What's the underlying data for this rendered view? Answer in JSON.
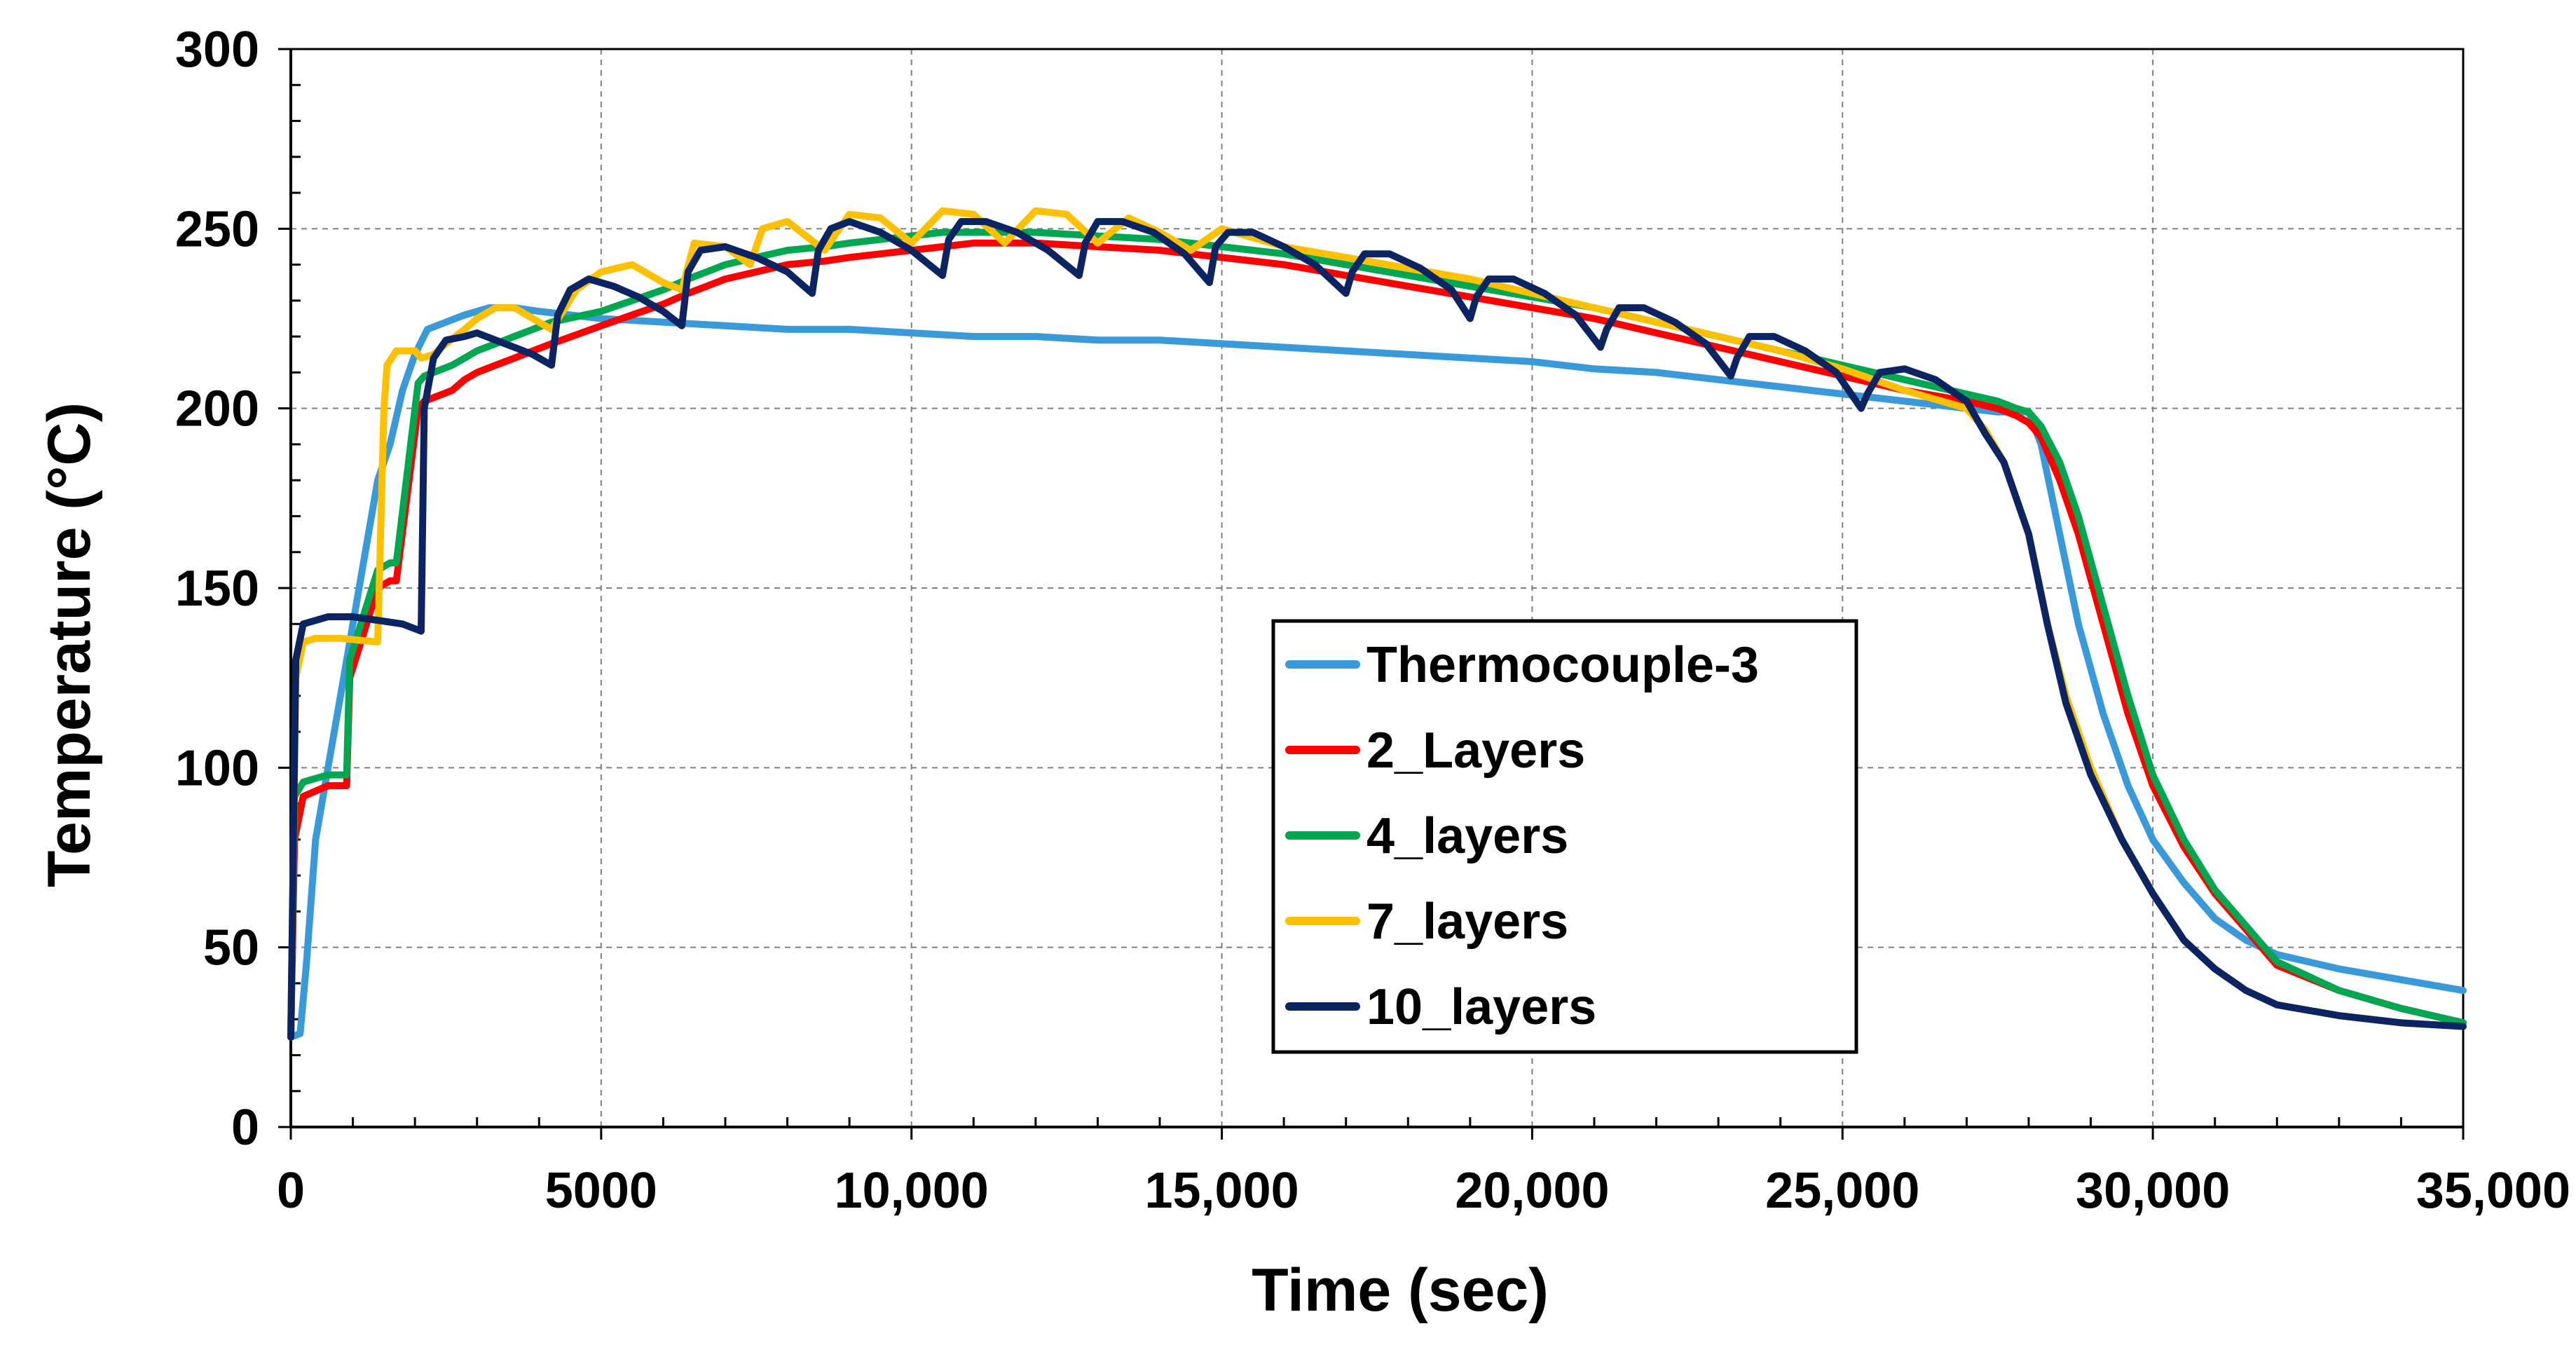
{
  "chart_data": {
    "type": "line",
    "title": "",
    "xlabel": "Time (sec)",
    "ylabel": "Temperature (°C)",
    "xlim": [
      0,
      35000
    ],
    "ylim": [
      0,
      300
    ],
    "x_ticks": [
      {
        "value": 0,
        "label": "0"
      },
      {
        "value": 5000,
        "label": "5000"
      },
      {
        "value": 10000,
        "label": "10,000"
      },
      {
        "value": 15000,
        "label": "15,000"
      },
      {
        "value": 20000,
        "label": "20,000"
      },
      {
        "value": 25000,
        "label": "25,000"
      },
      {
        "value": 30000,
        "label": "30,000"
      },
      {
        "value": 35000,
        "label": "35,000"
      }
    ],
    "y_ticks": [
      {
        "value": 0,
        "label": "0"
      },
      {
        "value": 50,
        "label": "50"
      },
      {
        "value": 100,
        "label": "100"
      },
      {
        "value": 150,
        "label": "150"
      },
      {
        "value": 200,
        "label": "200"
      },
      {
        "value": 250,
        "label": "250"
      },
      {
        "value": 300,
        "label": "300"
      }
    ],
    "grid": true,
    "legend_position": "center",
    "series": [
      {
        "name": "Thermocouple-3",
        "color": "#3a9ad9",
        "x": [
          0,
          150,
          250,
          400,
          600,
          800,
          1000,
          1200,
          1400,
          1600,
          1800,
          2000,
          2200,
          2500,
          2800,
          3200,
          3600,
          4000,
          4500,
          5000,
          6000,
          7000,
          8000,
          9000,
          10000,
          11000,
          12000,
          13000,
          14000,
          15000,
          16000,
          17000,
          18000,
          19000,
          20000,
          21000,
          22000,
          23000,
          24000,
          25000,
          26000,
          27000,
          27500,
          28000,
          28200,
          28500,
          28800,
          29200,
          29600,
          30000,
          30500,
          31000,
          31500,
          32000,
          33000,
          34000,
          35000
        ],
        "y": [
          25,
          26,
          45,
          80,
          100,
          120,
          140,
          160,
          180,
          190,
          205,
          215,
          222,
          224,
          226,
          228,
          228,
          227,
          226,
          225,
          224,
          223,
          222,
          222,
          221,
          220,
          220,
          219,
          219,
          218,
          217,
          216,
          215,
          214,
          213,
          211,
          210,
          208,
          206,
          204,
          202,
          200,
          199,
          199,
          190,
          165,
          140,
          115,
          95,
          80,
          68,
          58,
          52,
          48,
          44,
          41,
          38
        ]
      },
      {
        "name": "2_Layers",
        "color": "#ff0000",
        "x": [
          0,
          60,
          200,
          600,
          900,
          950,
          1400,
          1600,
          1700,
          2050,
          2150,
          2300,
          2600,
          2800,
          3000,
          3300,
          3600,
          3900,
          4200,
          5000,
          5500,
          6000,
          6400,
          6700,
          7000,
          7500,
          8000,
          8600,
          9000,
          10000,
          10500,
          11000,
          12000,
          13000,
          14000,
          15000,
          16000,
          17000,
          18000,
          19000,
          20000,
          21000,
          22000,
          23000,
          24000,
          25000,
          26000,
          27000,
          27500,
          27800,
          28000,
          28200,
          28500,
          28800,
          29200,
          29600,
          30000,
          30500,
          31000,
          31500,
          32000,
          33000,
          34000,
          35000
        ],
        "y": [
          25,
          80,
          92,
          95,
          95,
          125,
          150,
          152,
          152,
          200,
          202,
          203,
          205,
          208,
          210,
          212,
          214,
          216,
          218,
          223,
          226,
          229,
          232,
          234,
          236,
          238,
          240,
          241,
          242,
          244,
          245,
          246,
          246,
          245,
          244,
          242,
          240,
          237,
          234,
          231,
          228,
          225,
          221,
          217,
          213,
          209,
          205,
          202,
          200,
          198,
          196,
          192,
          180,
          165,
          140,
          115,
          95,
          78,
          65,
          55,
          45,
          38,
          33,
          29
        ]
      },
      {
        "name": "4_layers",
        "color": "#00a650",
        "x": [
          0,
          60,
          200,
          600,
          900,
          950,
          1400,
          1600,
          1700,
          2050,
          2150,
          2300,
          2600,
          2800,
          3000,
          3300,
          3600,
          3900,
          4200,
          5000,
          5500,
          6000,
          6400,
          6700,
          7000,
          7500,
          8000,
          8600,
          9000,
          10000,
          10500,
          11000,
          12000,
          13000,
          14000,
          15000,
          16000,
          17000,
          18000,
          19000,
          20000,
          21000,
          22000,
          23000,
          24000,
          25000,
          26000,
          27000,
          27500,
          27800,
          28000,
          28200,
          28500,
          28800,
          29200,
          29600,
          30000,
          30500,
          31000,
          31500,
          32000,
          33000,
          34000,
          35000
        ],
        "y": [
          25,
          92,
          96,
          98,
          98,
          130,
          155,
          157,
          157,
          207,
          209,
          210,
          212,
          214,
          216,
          218,
          220,
          222,
          224,
          227,
          230,
          233,
          236,
          238,
          240,
          242,
          244,
          245,
          246,
          248,
          249,
          249,
          249,
          248,
          247,
          245,
          243,
          240,
          237,
          234,
          231,
          228,
          224,
          220,
          216,
          212,
          208,
          204,
          202,
          200,
          199,
          195,
          185,
          170,
          145,
          120,
          98,
          80,
          66,
          56,
          46,
          38,
          33,
          29
        ]
      },
      {
        "name": "7_layers",
        "color": "#ffc000",
        "x": [
          0,
          80,
          200,
          400,
          800,
          1400,
          1500,
          1550,
          1700,
          2000,
          2100,
          2300,
          2500,
          2800,
          3000,
          3300,
          3600,
          3900,
          4200,
          4600,
          5000,
          5500,
          6000,
          6300,
          6500,
          7000,
          7400,
          7600,
          8000,
          8600,
          9000,
          9500,
          10000,
          10500,
          11000,
          11500,
          12000,
          12500,
          13000,
          13500,
          14000,
          14500,
          15000,
          16000,
          17000,
          18000,
          19000,
          20000,
          21000,
          22000,
          23000,
          24000,
          25000,
          26000,
          27000,
          27300,
          27600,
          28000,
          28300,
          28600,
          29000,
          29500,
          30000,
          30500,
          31000,
          31500,
          32000,
          33000,
          34000,
          35000
        ],
        "y": [
          25,
          125,
          135,
          136,
          136,
          135,
          200,
          212,
          216,
          216,
          214,
          215,
          218,
          222,
          225,
          228,
          228,
          225,
          222,
          233,
          238,
          240,
          235,
          233,
          246,
          245,
          240,
          250,
          252,
          244,
          254,
          253,
          246,
          255,
          254,
          246,
          255,
          254,
          246,
          253,
          249,
          244,
          250,
          245,
          242,
          239,
          236,
          232,
          228,
          224,
          220,
          216,
          211,
          205,
          200,
          194,
          185,
          165,
          140,
          120,
          100,
          80,
          65,
          52,
          44,
          38,
          34,
          31,
          29,
          28
        ]
      },
      {
        "name": "10_layers",
        "color": "#0c2461",
        "x": [
          0,
          80,
          200,
          600,
          1000,
          1400,
          1800,
          2100,
          2150,
          2300,
          2500,
          2800,
          3000,
          3300,
          3600,
          3900,
          4200,
          4300,
          4500,
          4800,
          5200,
          5600,
          6000,
          6300,
          6400,
          6600,
          7000,
          7500,
          8000,
          8400,
          8500,
          8700,
          9000,
          9500,
          10000,
          10500,
          10600,
          10800,
          11200,
          11700,
          12200,
          12700,
          12800,
          13000,
          13400,
          13900,
          14400,
          14800,
          14900,
          15100,
          15500,
          16000,
          16500,
          17000,
          17100,
          17300,
          17700,
          18200,
          18700,
          19000,
          19100,
          19300,
          19700,
          20200,
          20700,
          21100,
          21200,
          21400,
          21800,
          22300,
          22800,
          23200,
          23300,
          23500,
          23900,
          24400,
          24900,
          25300,
          25400,
          25600,
          26000,
          26500,
          27000,
          27300,
          27600,
          28000,
          28300,
          28600,
          29000,
          29500,
          30000,
          30500,
          31000,
          31500,
          32000,
          33000,
          34000,
          35000
        ],
        "y": [
          25,
          130,
          140,
          142,
          142,
          141,
          140,
          138,
          200,
          214,
          219,
          220,
          221,
          219,
          217,
          215,
          212,
          226,
          233,
          236,
          234,
          231,
          227,
          223,
          238,
          244,
          245,
          242,
          238,
          232,
          244,
          250,
          252,
          249,
          244,
          237,
          247,
          252,
          252,
          249,
          244,
          237,
          246,
          252,
          252,
          249,
          243,
          235,
          245,
          249,
          249,
          245,
          240,
          232,
          238,
          243,
          243,
          239,
          233,
          225,
          231,
          236,
          236,
          232,
          226,
          217,
          222,
          228,
          228,
          224,
          218,
          209,
          214,
          220,
          220,
          216,
          210,
          200,
          204,
          210,
          211,
          208,
          202,
          193,
          185,
          165,
          140,
          118,
          98,
          80,
          65,
          52,
          44,
          38,
          34,
          31,
          29,
          28
        ]
      }
    ]
  }
}
